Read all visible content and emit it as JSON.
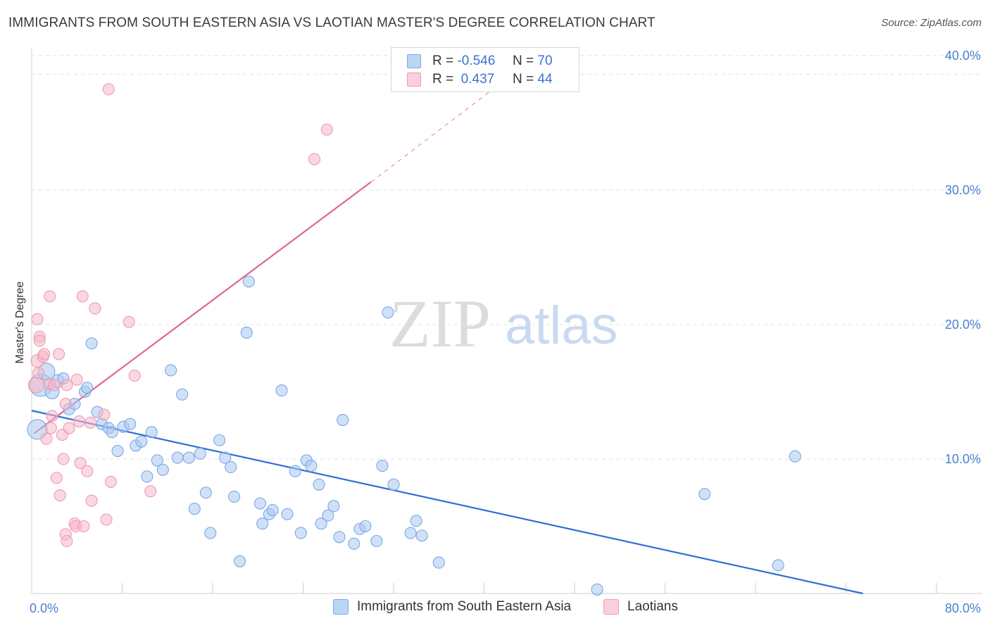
{
  "title": "IMMIGRANTS FROM SOUTH EASTERN ASIA VS LAOTIAN MASTER'S DEGREE CORRELATION CHART",
  "source": "Source: ZipAtlas.com",
  "watermark": {
    "zip": "ZIP",
    "atlas": "atlas"
  },
  "legend": {
    "rows": [
      {
        "r_label": "R =",
        "r_value": "-0.546",
        "n_label": "N =",
        "n_value": "70",
        "color": "#a9c8f0"
      },
      {
        "r_label": "R =",
        "r_value": "0.437",
        "n_label": "N =",
        "n_value": "44",
        "color": "#f6b8c9"
      }
    ]
  },
  "bottom_legend": [
    {
      "label": "Immigrants from South Eastern Asia",
      "color": "#a9c8f0"
    },
    {
      "label": "Laotians",
      "color": "#f6b8c9"
    }
  ],
  "chart_data": {
    "type": "scatter",
    "title": "IMMIGRANTS FROM SOUTH EASTERN ASIA VS LAOTIAN MASTER'S DEGREE CORRELATION CHART",
    "xlabel": "",
    "ylabel": "Master's Degree",
    "xlim": [
      0,
      80
    ],
    "ylim": [
      0,
      40
    ],
    "x_tick_labels": [
      "0.0%",
      "80.0%"
    ],
    "y_ticks": [
      10,
      20,
      30,
      40
    ],
    "y_tick_labels": [
      "10.0%",
      "20.0%",
      "30.0%",
      "40.0%"
    ],
    "grid": "dashed horizontal",
    "legend_position": "top-center",
    "series": [
      {
        "name": "Immigrants from South Eastern Asia",
        "color": "#7aa7e6",
        "fill": "#a9c8f0",
        "trend": {
          "x": [
            0,
            73.5
          ],
          "y": [
            13.6,
            0
          ],
          "color": "#2f6fd4"
        },
        "points": [
          [
            0.5,
            12.2,
            14
          ],
          [
            0.8,
            15.5,
            16
          ],
          [
            1.3,
            16.5,
            12
          ],
          [
            1.8,
            15.0,
            10
          ],
          [
            2.3,
            15.8,
            9
          ],
          [
            2.8,
            16.0,
            8
          ],
          [
            3.3,
            13.7,
            8
          ],
          [
            3.8,
            14.1,
            8
          ],
          [
            4.7,
            15.0,
            8
          ],
          [
            4.9,
            15.3,
            8
          ],
          [
            5.3,
            18.6,
            8
          ],
          [
            5.8,
            13.5,
            8
          ],
          [
            6.2,
            12.6,
            8
          ],
          [
            6.8,
            12.3,
            8
          ],
          [
            7.1,
            12.0,
            8
          ],
          [
            7.6,
            10.6,
            8
          ],
          [
            8.1,
            12.4,
            8
          ],
          [
            8.7,
            12.6,
            8
          ],
          [
            9.2,
            11.0,
            8
          ],
          [
            9.7,
            11.3,
            8
          ],
          [
            10.2,
            8.7,
            8
          ],
          [
            10.6,
            12.0,
            8
          ],
          [
            11.1,
            9.9,
            8
          ],
          [
            11.6,
            9.2,
            8
          ],
          [
            12.3,
            16.6,
            8
          ],
          [
            12.9,
            10.1,
            8
          ],
          [
            13.3,
            14.8,
            8
          ],
          [
            13.9,
            10.1,
            8
          ],
          [
            14.4,
            6.3,
            8
          ],
          [
            14.9,
            10.4,
            8
          ],
          [
            15.4,
            7.5,
            8
          ],
          [
            15.8,
            4.5,
            8
          ],
          [
            16.6,
            11.4,
            8
          ],
          [
            17.1,
            10.1,
            8
          ],
          [
            17.6,
            9.4,
            8
          ],
          [
            17.9,
            7.2,
            8
          ],
          [
            18.4,
            2.4,
            8
          ],
          [
            19.0,
            19.4,
            8
          ],
          [
            19.2,
            23.2,
            8
          ],
          [
            20.2,
            6.7,
            8
          ],
          [
            20.4,
            5.2,
            8
          ],
          [
            21.0,
            5.9,
            8
          ],
          [
            21.3,
            6.2,
            8
          ],
          [
            22.1,
            15.1,
            8
          ],
          [
            22.6,
            5.9,
            8
          ],
          [
            23.3,
            9.1,
            8
          ],
          [
            23.8,
            4.5,
            8
          ],
          [
            24.3,
            9.9,
            8
          ],
          [
            24.7,
            9.5,
            8
          ],
          [
            25.4,
            8.1,
            8
          ],
          [
            25.6,
            5.2,
            8
          ],
          [
            26.2,
            5.8,
            8
          ],
          [
            26.7,
            6.5,
            8
          ],
          [
            27.2,
            4.2,
            8
          ],
          [
            27.5,
            12.9,
            8
          ],
          [
            28.5,
            3.7,
            8
          ],
          [
            29.0,
            4.8,
            8
          ],
          [
            29.5,
            5.0,
            8
          ],
          [
            30.5,
            3.9,
            8
          ],
          [
            31.0,
            9.5,
            8
          ],
          [
            31.5,
            20.9,
            8
          ],
          [
            32.0,
            8.1,
            8
          ],
          [
            33.5,
            4.5,
            8
          ],
          [
            34.0,
            5.4,
            8
          ],
          [
            34.5,
            4.3,
            8
          ],
          [
            36.0,
            2.3,
            8
          ],
          [
            50.0,
            0.3,
            8
          ],
          [
            59.5,
            7.4,
            8
          ],
          [
            66.0,
            2.1,
            8
          ],
          [
            67.5,
            10.2,
            8
          ]
        ]
      },
      {
        "name": "Laotians",
        "color": "#ee9ab2",
        "fill": "#f6b8c9",
        "trend": {
          "x": [
            0.2,
            30.0
          ],
          "y": [
            11.9,
            30.6
          ],
          "color": "#e0668f"
        },
        "trend_dashed": {
          "x": [
            30.0,
            42.5
          ],
          "y": [
            30.6,
            38.6
          ],
          "color": "#e89ab0"
        },
        "points": [
          [
            0.4,
            15.5,
            11
          ],
          [
            0.5,
            17.3,
            9
          ],
          [
            0.5,
            20.4,
            8
          ],
          [
            0.6,
            16.4,
            8
          ],
          [
            0.7,
            19.1,
            8
          ],
          [
            0.7,
            18.8,
            8
          ],
          [
            1.0,
            17.6,
            8
          ],
          [
            1.1,
            17.8,
            8
          ],
          [
            1.3,
            11.5,
            8
          ],
          [
            1.6,
            22.1,
            8
          ],
          [
            1.6,
            15.6,
            8
          ],
          [
            1.7,
            12.3,
            8
          ],
          [
            1.8,
            13.2,
            8
          ],
          [
            2.0,
            15.5,
            8
          ],
          [
            2.2,
            8.6,
            8
          ],
          [
            2.4,
            17.8,
            8
          ],
          [
            2.5,
            7.3,
            8
          ],
          [
            2.7,
            11.8,
            8
          ],
          [
            2.8,
            10.0,
            8
          ],
          [
            3.0,
            14.1,
            8
          ],
          [
            3.0,
            4.4,
            8
          ],
          [
            3.1,
            3.9,
            8
          ],
          [
            3.3,
            12.3,
            8
          ],
          [
            3.8,
            5.2,
            8
          ],
          [
            3.9,
            5.0,
            8
          ],
          [
            4.0,
            15.9,
            8
          ],
          [
            4.3,
            9.7,
            8
          ],
          [
            4.5,
            22.1,
            8
          ],
          [
            4.6,
            5.0,
            8
          ],
          [
            4.9,
            9.1,
            8
          ],
          [
            5.2,
            12.7,
            8
          ],
          [
            5.3,
            6.9,
            8
          ],
          [
            5.6,
            21.2,
            8
          ],
          [
            6.4,
            13.3,
            8
          ],
          [
            6.6,
            5.5,
            8
          ],
          [
            6.8,
            37.5,
            8
          ],
          [
            7.0,
            8.3,
            8
          ],
          [
            8.6,
            20.2,
            8
          ],
          [
            9.1,
            16.2,
            8
          ],
          [
            10.5,
            7.6,
            8
          ],
          [
            25.0,
            32.3,
            8
          ],
          [
            26.1,
            34.5,
            8
          ],
          [
            3.1,
            15.5,
            8
          ],
          [
            4.2,
            12.8,
            8
          ]
        ]
      }
    ]
  }
}
